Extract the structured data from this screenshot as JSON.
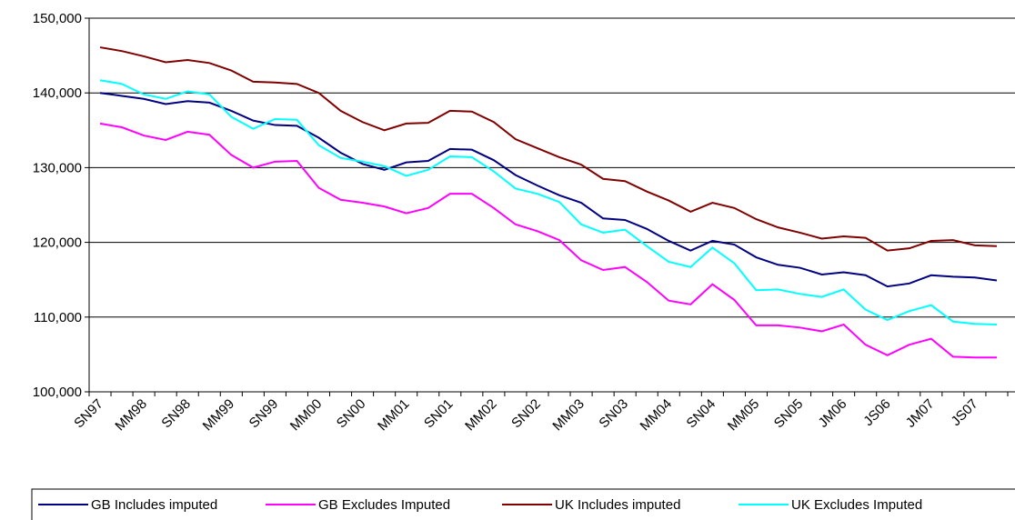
{
  "chart_data": {
    "type": "line",
    "categories": [
      "SN97",
      null,
      "MM98",
      null,
      "SN98",
      null,
      "MM99",
      null,
      "SN99",
      null,
      "MM00",
      null,
      "SN00",
      null,
      "MM01",
      null,
      "SN01",
      null,
      "MM02",
      null,
      "SN02",
      null,
      "MM03",
      null,
      "SN03",
      null,
      "MM04",
      null,
      "SN04",
      null,
      "MM05",
      null,
      "SN05",
      null,
      "JM06",
      null,
      "JS06",
      null,
      "JM07",
      null,
      "JS07",
      null
    ],
    "series": [
      {
        "name": "GB Includes imputed",
        "color": "#000080",
        "values": [
          140000,
          139600,
          139200,
          138500,
          138900,
          138700,
          137600,
          136300,
          135700,
          135600,
          134000,
          132000,
          130500,
          129700,
          130700,
          130900,
          132500,
          132400,
          131000,
          129000,
          127600,
          126300,
          125300,
          123200,
          123000,
          121800,
          120200,
          118900,
          120200,
          119700,
          118000,
          117000,
          116600,
          115700,
          116000,
          115600,
          114100,
          114500,
          115600,
          115400,
          115300,
          114900
        ]
      },
      {
        "name": "GB Excludes Imputed",
        "color": "#ff00ff",
        "values": [
          135900,
          135400,
          134300,
          133700,
          134800,
          134400,
          131700,
          130000,
          130800,
          130900,
          127300,
          125700,
          125300,
          124800,
          123900,
          124600,
          126500,
          126500,
          124600,
          122400,
          121500,
          120300,
          117600,
          116300,
          116700,
          114700,
          112200,
          111700,
          114400,
          112300,
          108900,
          108900,
          108600,
          108100,
          109000,
          106300,
          104900,
          106300,
          107100,
          104700,
          104600,
          104600
        ]
      },
      {
        "name": "UK Includes imputed",
        "color": "#800000",
        "values": [
          146100,
          145600,
          144900,
          144100,
          144400,
          144000,
          143000,
          141500,
          141400,
          141200,
          140000,
          137600,
          136100,
          135000,
          135900,
          136000,
          137600,
          137500,
          136100,
          133800,
          132600,
          131400,
          130400,
          128500,
          128200,
          126800,
          125600,
          124100,
          125300,
          124600,
          123100,
          122000,
          121300,
          120500,
          120800,
          120600,
          118900,
          119200,
          120200,
          120300,
          119600,
          119500
        ]
      },
      {
        "name": "UK Excludes Imputed",
        "color": "#00ffff",
        "values": [
          141700,
          141200,
          139800,
          139200,
          140200,
          139800,
          136800,
          135200,
          136500,
          136400,
          133000,
          131300,
          130800,
          130200,
          128900,
          129700,
          131500,
          131400,
          129500,
          127200,
          126500,
          125400,
          122400,
          121300,
          121700,
          119500,
          117400,
          116700,
          119300,
          117200,
          113600,
          113700,
          113100,
          112700,
          113700,
          111000,
          109600,
          110800,
          111600,
          109400,
          109100,
          109000
        ]
      }
    ],
    "ylim": [
      100000,
      150000
    ],
    "yticks": [
      {
        "value": 100000,
        "label": "100,000"
      },
      {
        "value": 110000,
        "label": "110,000"
      },
      {
        "value": 120000,
        "label": "120,000"
      },
      {
        "value": 130000,
        "label": "130,000"
      },
      {
        "value": 140000,
        "label": "140,000"
      },
      {
        "value": 150000,
        "label": "150,000"
      }
    ],
    "grid": true
  }
}
